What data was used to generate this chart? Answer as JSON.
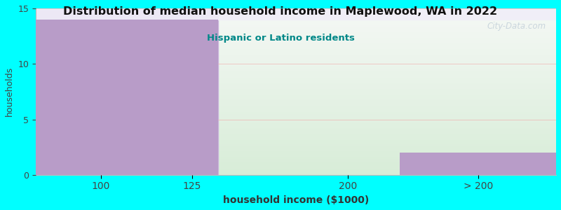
{
  "title": "Distribution of median household income in Maplewood, WA in 2022",
  "subtitle": "Hispanic or Latino residents",
  "xlabel": "household income ($1000)",
  "ylabel": "households",
  "background_color": "#00FFFF",
  "plot_bg_top": "#F0EEF5",
  "plot_bg_bottom_right": "#E2F0E2",
  "bar_color": "#B89CC8",
  "subtitle_color": "#008888",
  "title_color": "#111111",
  "bars": [
    {
      "x_left": 0,
      "x_right": 1,
      "height": 14
    },
    {
      "x_left": 1,
      "x_right": 1.4,
      "height": 14
    },
    {
      "x_left": 2.8,
      "x_right": 4,
      "height": 2
    }
  ],
  "xtick_positions": [
    0.5,
    1.2,
    2.4,
    3.4
  ],
  "xtick_labels": [
    "100",
    "125",
    "200",
    "> 200"
  ],
  "xlim": [
    0,
    4.0
  ],
  "ylim": [
    0,
    15
  ],
  "yticks": [
    0,
    5,
    10,
    15
  ],
  "grid_color": "#F0AAAA",
  "watermark": "City-Data.com"
}
